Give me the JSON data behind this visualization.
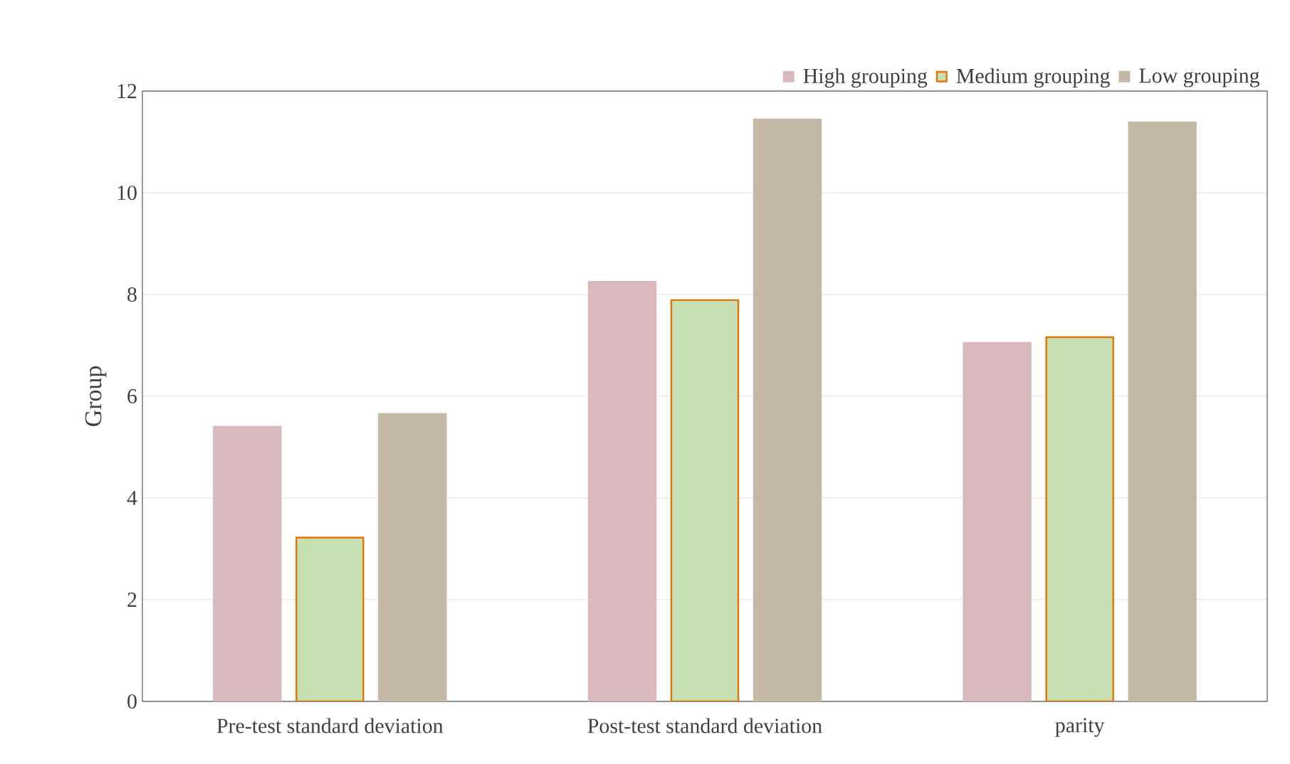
{
  "chart_data": {
    "type": "bar",
    "ylabel": "Group",
    "categories": [
      "Pre-test standard deviation",
      "Post-test standard deviation",
      "parity"
    ],
    "series": [
      {
        "name": "High grouping",
        "color": "#d9b9bd",
        "values": [
          5.4,
          8.25,
          7.05
        ]
      },
      {
        "name": "Medium grouping",
        "color": "#c6e0b4",
        "values": [
          3.22,
          7.89,
          7.16
        ]
      },
      {
        "name": "Low grouping",
        "color": "#c4b9a6",
        "values": [
          5.65,
          11.44,
          11.38
        ]
      }
    ],
    "ylim": [
      0,
      12
    ],
    "yticks": [
      0,
      2,
      4,
      6,
      8,
      10,
      12
    ],
    "grid": "y",
    "legend": "top right"
  }
}
